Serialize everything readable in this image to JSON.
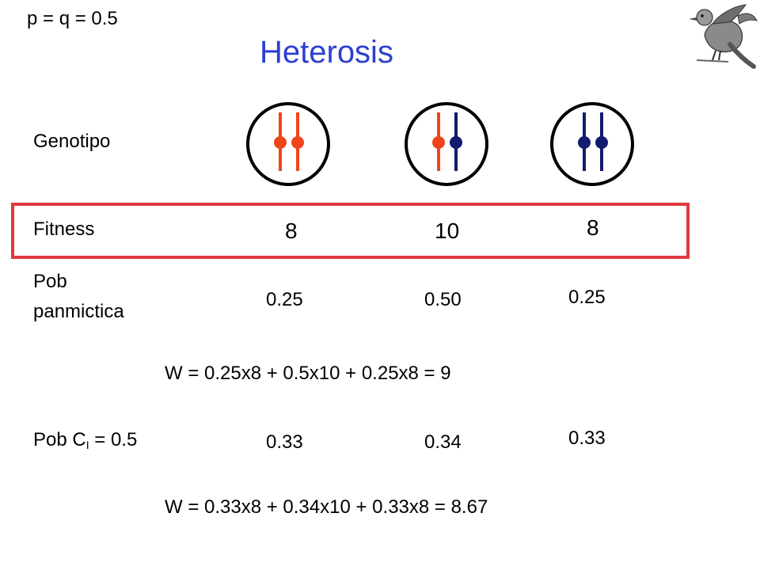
{
  "header": {
    "frequency_note": "p = q = 0.5",
    "title": "Heterosis"
  },
  "rows": {
    "genotype_label": "Genotipo",
    "fitness_label": "Fitness",
    "pob_panmictica_line1": "Pob",
    "pob_panmictica_line2": "panmictica",
    "pob_ci_prefix": "Pob C",
    "pob_ci_sub": "I",
    "pob_ci_suffix": " = 0.5"
  },
  "fitness": [
    "8",
    "10",
    "8"
  ],
  "panmictic_freqs": [
    "0.25",
    "0.50",
    "0.25"
  ],
  "inbred_freqs": [
    "0.33",
    "0.34",
    "0.33"
  ],
  "equations": {
    "w_panmictic": "W = 0.25x8 + 0.5x10 + 0.25x8 = 9",
    "w_inbred": "W = 0.33x8 + 0.34x10 + 0.33x8 = 8.67"
  },
  "colors": {
    "allele_red": "#f0441b",
    "allele_blue": "#141a6e",
    "title_blue": "#2d3fd0",
    "highlight_border": "#e03a3e"
  },
  "genotypes": [
    {
      "name": "homozygous-red",
      "alleles": [
        "red",
        "red"
      ]
    },
    {
      "name": "heterozygous",
      "alleles": [
        "red",
        "blue"
      ]
    },
    {
      "name": "homozygous-blue",
      "alleles": [
        "blue",
        "blue"
      ]
    }
  ]
}
